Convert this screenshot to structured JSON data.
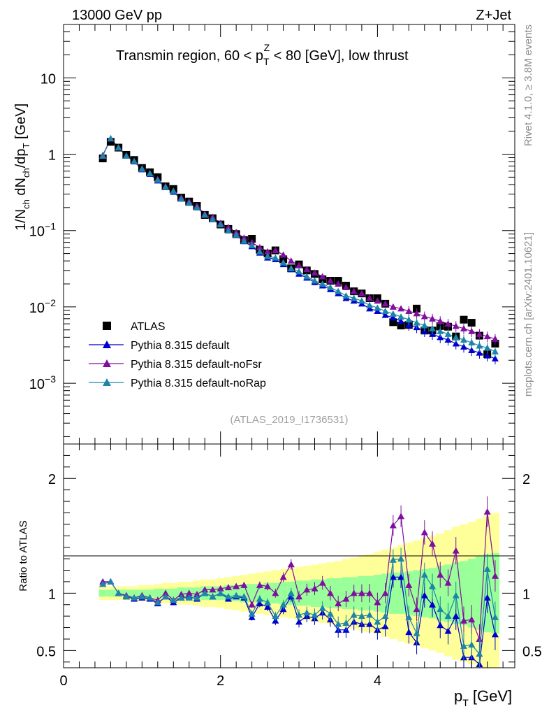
{
  "header": {
    "energy_label": "13000 GeV pp",
    "process_label": "Z+Jet"
  },
  "side_labels": {
    "rivet": "Rivet 4.1.0, ≥ 3.8M events",
    "mcplots": "mcplots.cern.ch [arXiv:2401.10621]"
  },
  "colors": {
    "atlas": "#000000",
    "default": "#0000cc",
    "noFsr": "#7f0f9f",
    "noRap": "#1c86a8",
    "band_inner": "#99ff99",
    "band_outer": "#ffff99"
  },
  "chart_data": [
    {
      "type": "scatter",
      "panel": "main",
      "title_parts": {
        "pre": "Transmin region, 60 < p",
        "sub": "T",
        "sup": "Z",
        "post": " < 80 [GeV], low thrust"
      },
      "ylabel_parts": {
        "a": "1/N",
        "a_sub": "ch",
        "b": " dN",
        "b_sub": "ch",
        "c": "/dp",
        "c_sub": "T",
        "d": " [GeV]"
      },
      "yscale": "log",
      "ylim": [
        0.00016,
        50
      ],
      "xlim": [
        0,
        5.75
      ],
      "y_ticks": [
        {
          "value": 10,
          "label": "10"
        },
        {
          "value": 1,
          "label": "1"
        },
        {
          "value": 0.1,
          "base": "10",
          "exp": "−1"
        },
        {
          "value": 0.01,
          "base": "10",
          "exp": "−2"
        },
        {
          "value": 0.001,
          "base": "10",
          "exp": "−3"
        }
      ],
      "watermark": "(ATLAS_2019_I1736531)",
      "legend_position": "bottom-left",
      "legend": [
        "ATLAS",
        "Pythia 8.315 default",
        "Pythia 8.315 default-noFsr",
        "Pythia 8.315 default-noRap"
      ],
      "x": [
        0.5,
        0.6,
        0.7,
        0.8,
        0.9,
        1.0,
        1.1,
        1.2,
        1.3,
        1.4,
        1.5,
        1.6,
        1.7,
        1.8,
        1.9,
        2.0,
        2.1,
        2.2,
        2.3,
        2.4,
        2.5,
        2.6,
        2.7,
        2.8,
        2.9,
        3.0,
        3.1,
        3.2,
        3.3,
        3.4,
        3.5,
        3.6,
        3.7,
        3.8,
        3.9,
        4.0,
        4.1,
        4.2,
        4.3,
        4.4,
        4.5,
        4.6,
        4.7,
        4.8,
        4.9,
        5.0,
        5.1,
        5.2,
        5.3,
        5.4,
        5.5
      ],
      "series": [
        {
          "name": "ATLAS",
          "marker": "square",
          "values": [
            0.88,
            1.45,
            1.22,
            0.98,
            0.84,
            0.66,
            0.58,
            0.5,
            0.38,
            0.35,
            0.27,
            0.24,
            0.21,
            0.16,
            0.145,
            0.12,
            0.105,
            0.09,
            0.075,
            0.078,
            0.056,
            0.05,
            0.055,
            0.042,
            0.032,
            0.036,
            0.03,
            0.027,
            0.023,
            0.022,
            0.022,
            0.019,
            0.016,
            0.015,
            0.013,
            0.013,
            0.011,
            0.0063,
            0.0057,
            0.0058,
            0.0095,
            0.0049,
            0.0049,
            0.0056,
            0.0055,
            0.0041,
            0.0068,
            0.0062,
            0.0042,
            0.0024,
            0.0033
          ]
        },
        {
          "name": "Pythia 8.315 default",
          "marker": "triangle",
          "values": [
            0.95,
            1.6,
            1.22,
            0.95,
            0.8,
            0.63,
            0.55,
            0.45,
            0.37,
            0.32,
            0.26,
            0.23,
            0.2,
            0.16,
            0.14,
            0.12,
            0.1,
            0.087,
            0.072,
            0.062,
            0.051,
            0.044,
            0.042,
            0.036,
            0.031,
            0.027,
            0.024,
            0.021,
            0.019,
            0.017,
            0.015,
            0.013,
            0.012,
            0.011,
            0.0095,
            0.0088,
            0.0078,
            0.0072,
            0.0065,
            0.0058,
            0.0054,
            0.0048,
            0.0044,
            0.004,
            0.0037,
            0.0033,
            0.003,
            0.0027,
            0.0025,
            0.0023,
            0.0021
          ]
        },
        {
          "name": "Pythia 8.315 default-noFsr",
          "marker": "triangle",
          "values": [
            0.97,
            1.6,
            1.22,
            0.96,
            0.81,
            0.65,
            0.56,
            0.47,
            0.38,
            0.33,
            0.27,
            0.24,
            0.21,
            0.165,
            0.15,
            0.125,
            0.11,
            0.095,
            0.08,
            0.07,
            0.06,
            0.053,
            0.055,
            0.048,
            0.04,
            0.035,
            0.031,
            0.028,
            0.025,
            0.022,
            0.02,
            0.018,
            0.016,
            0.015,
            0.013,
            0.012,
            0.011,
            0.01,
            0.0095,
            0.0088,
            0.0082,
            0.0075,
            0.007,
            0.0065,
            0.006,
            0.0056,
            0.0052,
            0.0048,
            0.0044,
            0.0041,
            0.0038
          ]
        },
        {
          "name": "Pythia 8.315 default-noRap",
          "marker": "triangle",
          "values": [
            0.95,
            1.6,
            1.22,
            0.95,
            0.81,
            0.64,
            0.56,
            0.46,
            0.37,
            0.33,
            0.26,
            0.23,
            0.2,
            0.16,
            0.14,
            0.12,
            0.1,
            0.088,
            0.073,
            0.064,
            0.053,
            0.046,
            0.044,
            0.038,
            0.032,
            0.029,
            0.025,
            0.022,
            0.02,
            0.018,
            0.016,
            0.014,
            0.013,
            0.012,
            0.0105,
            0.0097,
            0.0088,
            0.0081,
            0.0074,
            0.0068,
            0.0062,
            0.0057,
            0.0052,
            0.0048,
            0.0044,
            0.004,
            0.0037,
            0.0034,
            0.0031,
            0.0029,
            0.0026
          ]
        }
      ]
    },
    {
      "type": "scatter",
      "panel": "ratio",
      "ylabel": "Ratio to ATLAS",
      "xlabel_parts": {
        "main": "p",
        "sub": "T",
        "post": " [GeV]"
      },
      "xlim": [
        0,
        5.75
      ],
      "ylim": [
        0.35,
        2.3
      ],
      "x_ticks": [
        0,
        2,
        4
      ],
      "y_ticks": [
        0.5,
        1,
        2
      ],
      "x": [
        0.5,
        0.6,
        0.7,
        0.8,
        0.9,
        1.0,
        1.1,
        1.2,
        1.3,
        1.4,
        1.5,
        1.6,
        1.7,
        1.8,
        1.9,
        2.0,
        2.1,
        2.2,
        2.3,
        2.4,
        2.5,
        2.6,
        2.7,
        2.8,
        2.9,
        3.0,
        3.1,
        3.2,
        3.3,
        3.4,
        3.5,
        3.6,
        3.7,
        3.8,
        3.9,
        4.0,
        4.1,
        4.2,
        4.3,
        4.4,
        4.5,
        4.6,
        4.7,
        4.8,
        4.9,
        5.0,
        5.1,
        5.2,
        5.3,
        5.4,
        5.5
      ],
      "band_inner": [
        0.03,
        0.03,
        0.03,
        0.03,
        0.03,
        0.03,
        0.03,
        0.04,
        0.04,
        0.04,
        0.05,
        0.05,
        0.05,
        0.06,
        0.06,
        0.06,
        0.07,
        0.07,
        0.08,
        0.08,
        0.08,
        0.09,
        0.09,
        0.1,
        0.1,
        0.11,
        0.11,
        0.12,
        0.12,
        0.13,
        0.13,
        0.14,
        0.14,
        0.15,
        0.15,
        0.16,
        0.17,
        0.18,
        0.18,
        0.19,
        0.2,
        0.21,
        0.22,
        0.24,
        0.25,
        0.27,
        0.28,
        0.3,
        0.32,
        0.34,
        0.35
      ],
      "band_outer": [
        0.06,
        0.06,
        0.06,
        0.06,
        0.06,
        0.07,
        0.07,
        0.08,
        0.09,
        0.09,
        0.1,
        0.1,
        0.11,
        0.12,
        0.12,
        0.13,
        0.14,
        0.15,
        0.16,
        0.17,
        0.18,
        0.19,
        0.2,
        0.21,
        0.22,
        0.23,
        0.24,
        0.25,
        0.26,
        0.27,
        0.28,
        0.3,
        0.31,
        0.33,
        0.34,
        0.36,
        0.38,
        0.4,
        0.42,
        0.44,
        0.46,
        0.48,
        0.5,
        0.52,
        0.55,
        0.58,
        0.6,
        0.62,
        0.65,
        0.68,
        0.7
      ],
      "series": [
        {
          "name": "Pythia 8.315 default",
          "values": [
            1.08,
            1.1,
            1.0,
            0.97,
            0.95,
            0.96,
            0.95,
            0.91,
            0.97,
            0.92,
            0.96,
            0.97,
            0.95,
            1.0,
            0.97,
            1.0,
            0.95,
            0.97,
            0.96,
            0.79,
            0.91,
            0.88,
            0.76,
            0.86,
            0.97,
            0.75,
            0.8,
            0.78,
            0.83,
            0.77,
            0.68,
            0.68,
            0.75,
            0.73,
            0.73,
            0.68,
            0.71,
            1.14,
            1.14,
            0.66,
            0.57,
            0.98,
            0.9,
            0.72,
            0.67,
            0.8,
            0.44,
            0.44,
            0.38,
            0.96,
            0.64
          ]
        },
        {
          "name": "Pythia 8.315 default-noFsr",
          "values": [
            1.1,
            1.1,
            1.0,
            0.98,
            0.96,
            0.98,
            0.96,
            0.94,
            1.0,
            0.94,
            0.99,
            1.0,
            0.99,
            1.03,
            1.03,
            1.04,
            1.05,
            1.06,
            1.07,
            0.9,
            1.07,
            1.06,
            1.0,
            1.14,
            1.25,
            0.97,
            1.03,
            1.04,
            1.09,
            1.0,
            0.91,
            0.95,
            1.0,
            1.0,
            1.0,
            0.92,
            1.0,
            1.59,
            1.67,
            1.07,
            0.86,
            1.53,
            1.43,
            1.16,
            1.09,
            1.37,
            0.76,
            0.77,
            0.6,
            1.71,
            1.15
          ]
        },
        {
          "name": "Pythia 8.315 default-noRap",
          "values": [
            1.08,
            1.1,
            1.0,
            0.97,
            0.96,
            0.97,
            0.96,
            0.92,
            0.97,
            0.94,
            0.96,
            0.96,
            0.96,
            1.0,
            0.97,
            1.0,
            0.97,
            0.98,
            0.97,
            0.82,
            0.95,
            0.92,
            0.8,
            0.9,
            1.0,
            0.81,
            0.83,
            0.81,
            0.87,
            0.82,
            0.73,
            0.74,
            0.81,
            0.8,
            0.81,
            0.75,
            0.8,
            1.29,
            1.3,
            0.79,
            0.65,
            1.16,
            1.06,
            0.86,
            0.8,
            0.98,
            0.54,
            0.55,
            0.47,
            1.21,
            0.79
          ]
        }
      ]
    }
  ]
}
